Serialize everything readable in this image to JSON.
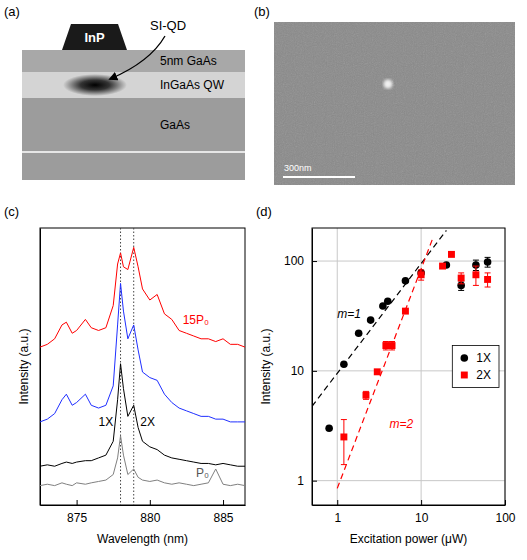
{
  "chart_data": [
    {
      "type": "line",
      "title": "(c)",
      "x_label": "Wavelength (nm)",
      "y_label": "Intensity (a.u.)",
      "x": [
        872.5,
        873,
        873.5,
        874,
        874.3,
        874.7,
        875,
        875.6,
        876,
        876.5,
        877,
        877.5,
        877.8,
        878,
        878.2,
        878.5,
        878.9,
        879.2,
        879.5,
        880,
        880.5,
        881,
        881.5,
        882,
        882.5,
        883,
        883.5,
        884,
        884.5,
        885,
        885.5,
        886,
        886.5
      ],
      "series": [
        {
          "name": "P₀",
          "color": "#808080",
          "values": [
            0.7,
            0.75,
            0.7,
            0.8,
            0.75,
            0.7,
            0.8,
            0.75,
            0.8,
            0.85,
            0.9,
            1.1,
            1.7,
            2.5,
            1.8,
            1.1,
            1.3,
            1.0,
            0.9,
            0.85,
            0.9,
            0.8,
            0.75,
            0.8,
            0.75,
            0.7,
            0.75,
            0.8,
            1.3,
            0.75,
            0.7,
            0.75,
            0.7
          ]
        },
        {
          "color": "#000000",
          "values": [
            1.4,
            1.45,
            1.4,
            1.5,
            1.55,
            1.5,
            1.55,
            1.6,
            1.6,
            1.7,
            1.8,
            2.3,
            3.8,
            5.1,
            4.2,
            3.2,
            3.6,
            2.8,
            2.3,
            2.1,
            2.0,
            1.8,
            1.7,
            1.65,
            1.6,
            1.55,
            1.5,
            1.5,
            1.45,
            1.5,
            1.45,
            1.4,
            1.4
          ]
        },
        {
          "color": "#1f2fff",
          "values": [
            3.0,
            3.1,
            3.3,
            3.8,
            4.0,
            3.6,
            3.7,
            4.0,
            3.6,
            3.5,
            3.6,
            4.3,
            6.5,
            8.0,
            7.0,
            6.0,
            6.5,
            5.6,
            4.8,
            4.6,
            4.5,
            4.0,
            3.7,
            3.5,
            3.4,
            3.3,
            3.2,
            3.2,
            3.1,
            3.1,
            3.0,
            3.0,
            3.0
          ]
        },
        {
          "name": "15P₀",
          "color": "#ff0000",
          "values": [
            5.7,
            5.8,
            6.0,
            6.5,
            6.6,
            6.2,
            6.3,
            6.7,
            6.4,
            6.3,
            6.4,
            7.2,
            8.7,
            9.1,
            8.6,
            8.5,
            9.3,
            8.6,
            7.8,
            7.4,
            7.6,
            6.9,
            6.7,
            6.3,
            6.2,
            6.1,
            6.0,
            6.0,
            5.9,
            6.0,
            5.8,
            5.8,
            5.7
          ]
        }
      ],
      "xlim": [
        872.5,
        886.5
      ],
      "xticks": [
        875,
        880,
        885
      ],
      "ylim": [
        0,
        10
      ],
      "tick_labels": "x",
      "vlines": [
        878.0,
        878.9
      ],
      "annotations": [
        {
          "text": "1X",
          "x": 877.0,
          "y": 2.85
        },
        {
          "text": "2X",
          "x": 879.85,
          "y": 2.85
        }
      ]
    },
    {
      "type": "scatter",
      "title": "(d)",
      "x_label": "Excitation power (μW)",
      "y_label": "Intensity (a.u.)",
      "log": true,
      "grid": true,
      "legend": "right",
      "xlim": [
        0.5,
        100
      ],
      "xticks": [
        1,
        10,
        100
      ],
      "ylim": [
        0.6,
        200
      ],
      "yticks": [
        1,
        10,
        100
      ],
      "series": [
        {
          "name": "1X",
          "color": "#000000",
          "marker": "circle",
          "x": [
            0.8,
            1.2,
            1.8,
            2.5,
            3.5,
            4,
            6.5,
            10,
            20,
            30,
            45,
            62
          ],
          "values": [
            3,
            11.5,
            22,
            29,
            39,
            43,
            66,
            78,
            92,
            60,
            92,
            98
          ],
          "errors": [
            null,
            null,
            null,
            null,
            null,
            null,
            null,
            null,
            null,
            6,
            10,
            10
          ]
        },
        {
          "name": "2X",
          "color": "#ff0000",
          "marker": "square",
          "x": [
            1.2,
            2.2,
            3,
            3.8,
            4.5,
            6.5,
            10,
            18,
            23,
            30,
            45,
            62
          ],
          "values": [
            2.5,
            6,
            9.8,
            17,
            17,
            35,
            75,
            90,
            115,
            70,
            75,
            68
          ],
          "errors": [
            1.1,
            0.5,
            null,
            1.5,
            1.5,
            null,
            8,
            null,
            null,
            8,
            15,
            10
          ]
        },
        {
          "type": "line",
          "line_style": "dashed",
          "color": "#000000",
          "x": [
            0.5,
            20
          ],
          "values": [
            4.75,
            190
          ]
        },
        {
          "type": "line",
          "line_style": "dashed",
          "color": "#ff0000",
          "x": [
            1,
            14
          ],
          "values": [
            0.85,
            166.6
          ]
        }
      ],
      "annotations": [
        {
          "text": "m=1",
          "x": 1.0,
          "y": 30,
          "color": "#000000"
        },
        {
          "text": "m=2",
          "x": 4.2,
          "y": 3.0,
          "color": "#ff0000"
        }
      ]
    }
  ],
  "diagram": {
    "label": "(a)",
    "cap": "InP",
    "pointer": "SI-QD",
    "layers": [
      "5nm GaAs",
      "InGaAs QW",
      "GaAs"
    ]
  },
  "image": {
    "label": "(b)",
    "scale_bar": "300nm"
  }
}
